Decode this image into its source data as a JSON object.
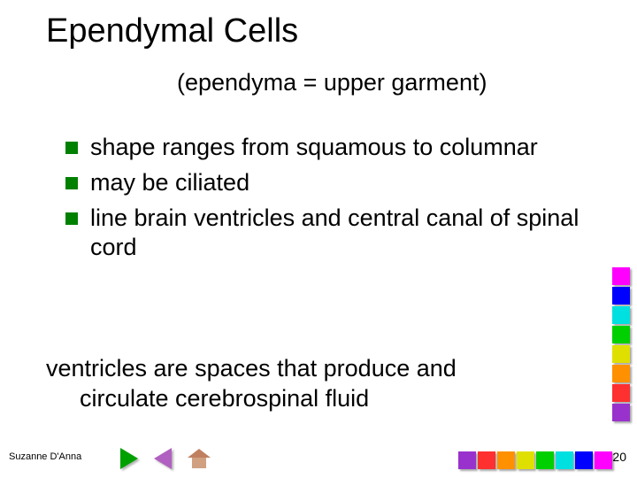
{
  "title": "Ependymal Cells",
  "subtitle": "(ependyma = upper garment)",
  "bullets": [
    "shape ranges from squamous to columnar",
    "may be ciliated",
    "line brain ventricles and central canal of spinal cord"
  ],
  "note_line1": "ventricles are spaces that produce and",
  "note_line2": "circulate cerebrospinal fluid",
  "author": "Suzanne D'Anna",
  "slide_number": "20",
  "bullet_color": "#008000",
  "strip_colors": [
    "#ff00ff",
    "#0000ff",
    "#00e0e0",
    "#00d000",
    "#e0e000",
    "#ff9000",
    "#ff3030",
    "#9932cc"
  ],
  "title_fontsize": 38,
  "subtitle_fontsize": 27,
  "body_fontsize": 27,
  "footer_fontsize": 11,
  "slidenum_fontsize": 14,
  "background": "#ffffff",
  "text_color": "#000000"
}
